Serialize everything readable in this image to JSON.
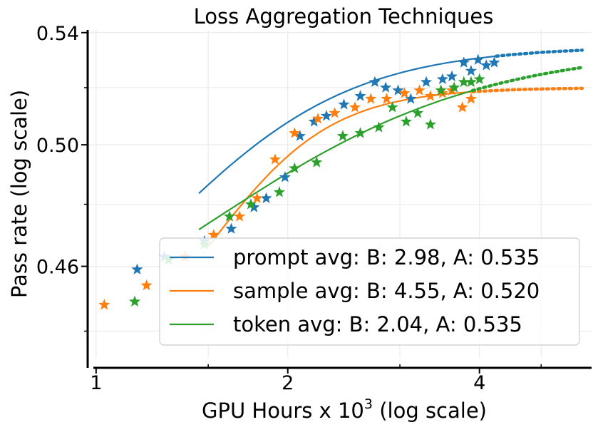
{
  "chart_data": {
    "type": "scatter",
    "title": "Loss Aggregation Techniques",
    "xlabel": "GPU Hours x 10",
    "xlabel_superscript": "3",
    "xlabel_suffix": " (log scale)",
    "ylabel": "Pass rate (log scale)",
    "xscale": "log",
    "yscale": "log",
    "xlim": [
      0.97,
      6.0
    ],
    "ylim": [
      0.432,
      0.541
    ],
    "x_ticks": [
      {
        "value": 1,
        "label": "1"
      },
      {
        "value": 2,
        "label": "2"
      },
      {
        "value": 4,
        "label": "4"
      }
    ],
    "y_ticks": [
      {
        "value": 0.46,
        "label": "0.46"
      },
      {
        "value": 0.5,
        "label": "0.50"
      },
      {
        "value": 0.54,
        "label": "0.54"
      }
    ],
    "grid": true,
    "legend_position": "lower-right",
    "series": [
      {
        "name": "prompt avg: B: 2.98, A: 0.535",
        "color": "#1f77b4",
        "B": 2.98,
        "A": 0.535,
        "C_mid": 1.35,
        "fit_range": [
          1.45,
          4.25
        ],
        "extrap_range": [
          4.25,
          5.8
        ],
        "points": [
          [
            1.16,
            0.459
          ],
          [
            1.48,
            0.468
          ],
          [
            1.63,
            0.472
          ],
          [
            1.77,
            0.479
          ],
          [
            1.85,
            0.482
          ],
          [
            1.98,
            0.489
          ],
          [
            2.09,
            0.503
          ],
          [
            2.2,
            0.508
          ],
          [
            2.3,
            0.51
          ],
          [
            2.45,
            0.514
          ],
          [
            2.6,
            0.517
          ],
          [
            2.74,
            0.522
          ],
          [
            2.85,
            0.52
          ],
          [
            2.98,
            0.519
          ],
          [
            3.12,
            0.516
          ],
          [
            3.3,
            0.522
          ],
          [
            3.5,
            0.523
          ],
          [
            3.62,
            0.524
          ],
          [
            3.78,
            0.529
          ],
          [
            3.88,
            0.526
          ],
          [
            3.98,
            0.53
          ],
          [
            4.1,
            0.528
          ],
          [
            4.22,
            0.529
          ],
          [
            1.28,
            0.463
          ]
        ]
      },
      {
        "name": "sample avg: B: 4.55, A: 0.520",
        "color": "#ff7f0e",
        "B": 4.55,
        "A": 0.52,
        "C_mid": 1.55,
        "fit_range": [
          1.5,
          3.9
        ],
        "extrap_range": [
          3.9,
          5.8
        ],
        "points": [
          [
            1.03,
            0.448
          ],
          [
            1.2,
            0.454
          ],
          [
            1.38,
            0.463
          ],
          [
            1.53,
            0.47
          ],
          [
            1.68,
            0.476
          ],
          [
            1.79,
            0.482
          ],
          [
            1.91,
            0.495
          ],
          [
            2.05,
            0.504
          ],
          [
            2.23,
            0.509
          ],
          [
            2.37,
            0.511
          ],
          [
            2.55,
            0.513
          ],
          [
            2.7,
            0.516
          ],
          [
            2.86,
            0.516
          ],
          [
            3.05,
            0.518
          ],
          [
            3.22,
            0.519
          ],
          [
            3.35,
            0.517
          ],
          [
            3.5,
            0.518
          ],
          [
            3.62,
            0.519
          ],
          [
            3.76,
            0.513
          ],
          [
            3.88,
            0.516
          ]
        ]
      },
      {
        "name": "token avg: B: 2.04, A: 0.535",
        "color": "#2ca02c",
        "B": 2.04,
        "A": 0.535,
        "C_mid": 1.6,
        "fit_range": [
          1.45,
          3.9
        ],
        "extrap_range": [
          3.9,
          5.8
        ],
        "points": [
          [
            1.15,
            0.449
          ],
          [
            1.3,
            0.462
          ],
          [
            1.48,
            0.467
          ],
          [
            1.62,
            0.476
          ],
          [
            1.75,
            0.48
          ],
          [
            1.94,
            0.484
          ],
          [
            2.05,
            0.492
          ],
          [
            2.22,
            0.494
          ],
          [
            2.44,
            0.503
          ],
          [
            2.6,
            0.504
          ],
          [
            2.78,
            0.506
          ],
          [
            2.92,
            0.513
          ],
          [
            3.07,
            0.508
          ],
          [
            3.2,
            0.511
          ],
          [
            3.35,
            0.507
          ],
          [
            3.48,
            0.519
          ],
          [
            3.65,
            0.52
          ],
          [
            3.78,
            0.522
          ],
          [
            3.88,
            0.522
          ],
          [
            4.0,
            0.523
          ]
        ]
      }
    ]
  }
}
